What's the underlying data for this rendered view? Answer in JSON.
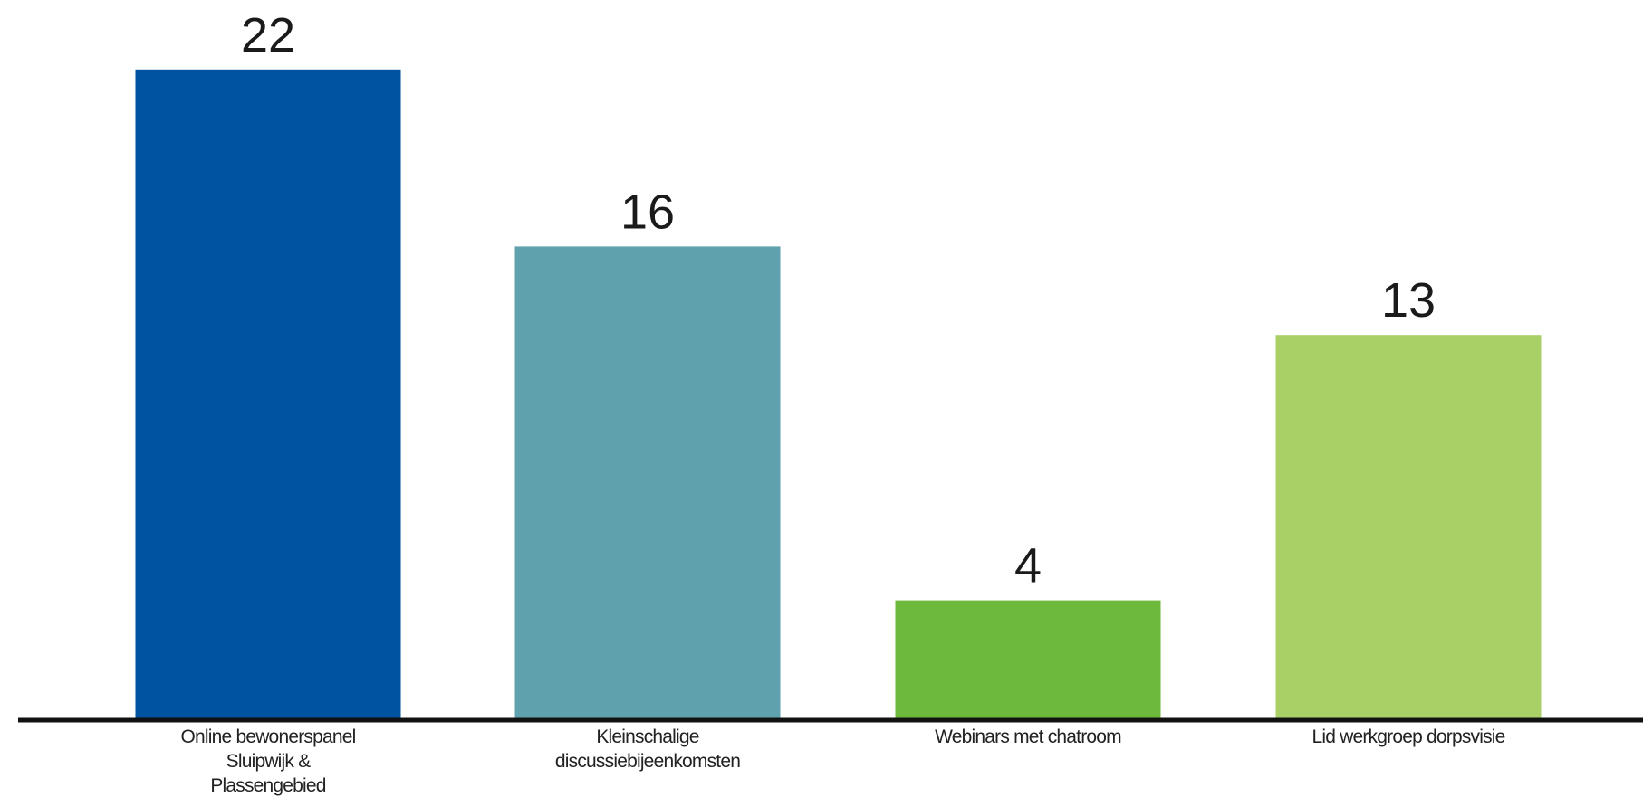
{
  "chart_data": {
    "type": "bar",
    "categories": [
      [
        "Online bewonerspanel",
        "Sluipwijk &",
        "Plassengebied"
      ],
      [
        "Kleinschalige",
        "discussiebijeenkomsten"
      ],
      [
        "Webinars met chatroom"
      ],
      [
        "Lid werkgroep dorpsvisie"
      ]
    ],
    "values": [
      22,
      16,
      4,
      13
    ],
    "value_labels": [
      "22",
      "16",
      "4",
      "13"
    ],
    "colors": [
      "#0053a0",
      "#5fa1ad",
      "#6cb93b",
      "#a9cf67"
    ],
    "axis_color": "#111111",
    "ylim": [
      0,
      22
    ],
    "title": "",
    "xlabel": "",
    "ylabel": "",
    "grid": false,
    "legend": "none"
  }
}
